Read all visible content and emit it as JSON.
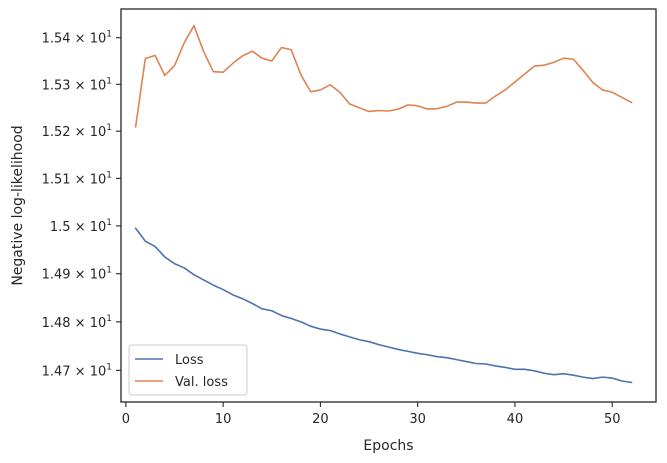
{
  "chart_data": {
    "type": "line",
    "xlabel": "Epochs",
    "ylabel": "Negative log-likelihood",
    "xlim": [
      -0.5,
      54.5
    ],
    "ylim": [
      14.635,
      15.462
    ],
    "y_scale": "log",
    "x_ticks": [
      0,
      10,
      20,
      30,
      40,
      50
    ],
    "x_tick_labels": [
      "0",
      "10",
      "20",
      "30",
      "40",
      "50"
    ],
    "y_ticks": [
      14.7,
      14.8,
      14.9,
      15.0,
      15.1,
      15.2,
      15.3,
      15.4
    ],
    "y_tick_labels": [
      {
        "mant": "1.47",
        "exp": "1"
      },
      {
        "mant": "1.48",
        "exp": "1"
      },
      {
        "mant": "1.49",
        "exp": "1"
      },
      {
        "mant": "1.5",
        "exp": "1"
      },
      {
        "mant": "1.51",
        "exp": "1"
      },
      {
        "mant": "1.52",
        "exp": "1"
      },
      {
        "mant": "1.53",
        "exp": "1"
      },
      {
        "mant": "1.54",
        "exp": "1"
      }
    ],
    "times_symbol": "×",
    "base": "10",
    "grid": false,
    "legend_position": "lower-left",
    "x": [
      1,
      2,
      3,
      4,
      5,
      6,
      7,
      8,
      9,
      10,
      11,
      12,
      13,
      14,
      15,
      16,
      17,
      18,
      19,
      20,
      21,
      22,
      23,
      24,
      25,
      26,
      27,
      28,
      29,
      30,
      31,
      32,
      33,
      34,
      35,
      36,
      37,
      38,
      39,
      40,
      41,
      42,
      43,
      44,
      45,
      46,
      47,
      48,
      49,
      50,
      51,
      52
    ],
    "series": [
      {
        "name": "Loss",
        "color": "#4c72b0",
        "values": [
          14.995,
          14.968,
          14.957,
          14.935,
          14.921,
          14.912,
          14.898,
          14.887,
          14.876,
          14.867,
          14.856,
          14.848,
          14.838,
          14.827,
          14.823,
          14.813,
          14.807,
          14.8,
          14.791,
          14.785,
          14.782,
          14.775,
          14.769,
          14.763,
          14.759,
          14.753,
          14.748,
          14.743,
          14.739,
          14.735,
          14.732,
          14.728,
          14.726,
          14.722,
          14.718,
          14.714,
          14.713,
          14.709,
          14.706,
          14.702,
          14.702,
          14.699,
          14.694,
          14.691,
          14.693,
          14.69,
          14.686,
          14.683,
          14.686,
          14.684,
          14.678,
          14.675
        ]
      },
      {
        "name": "Val. loss",
        "color": "#dd8452",
        "values": [
          15.209,
          15.355,
          15.362,
          15.319,
          15.34,
          15.389,
          15.426,
          15.37,
          15.327,
          15.326,
          15.345,
          15.361,
          15.371,
          15.356,
          15.35,
          15.379,
          15.374,
          15.32,
          15.284,
          15.288,
          15.299,
          15.283,
          15.258,
          15.25,
          15.242,
          15.244,
          15.243,
          15.247,
          15.256,
          15.254,
          15.247,
          15.248,
          15.253,
          15.262,
          15.262,
          15.26,
          15.26,
          15.275,
          15.288,
          15.305,
          15.322,
          15.339,
          15.341,
          15.347,
          15.356,
          15.354,
          15.33,
          15.304,
          15.288,
          15.283,
          15.272,
          15.261
        ]
      }
    ]
  }
}
